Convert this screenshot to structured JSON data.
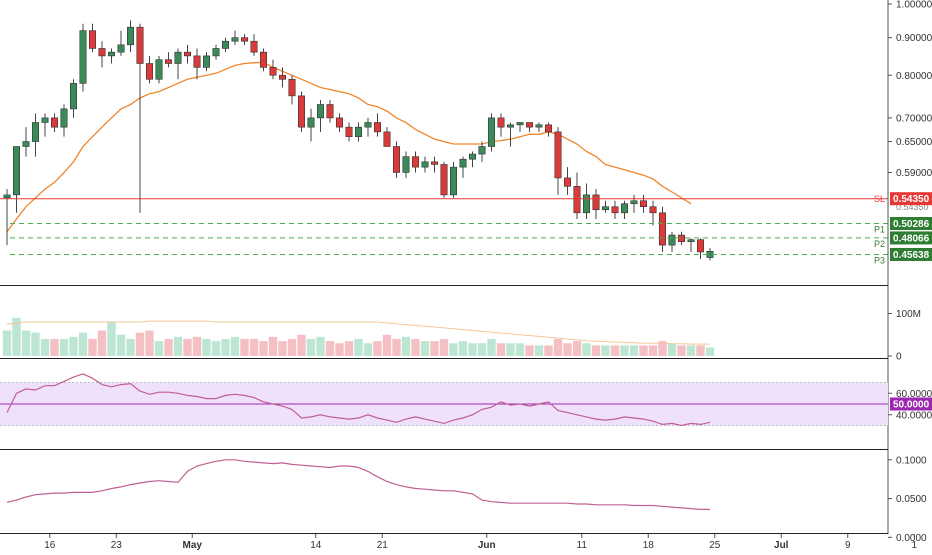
{
  "chart_data": {
    "type": "candlestick",
    "main": {
      "y_scale": "log",
      "ylim": [
        0.42,
        1.0
      ],
      "yticks": [
        "1.00000",
        "0.90000",
        "0.80000",
        "0.70000",
        "0.65000",
        "0.59000",
        "0.54350",
        "0.50286",
        "0.48066",
        "0.45638"
      ],
      "ytick_values": [
        1.0,
        0.9,
        0.8,
        0.7,
        0.65,
        0.59
      ],
      "candles": [
        [
          0.545,
          0.56,
          0.47,
          0.55
        ],
        [
          0.55,
          0.64,
          0.52,
          0.64
        ],
        [
          0.64,
          0.68,
          0.62,
          0.65
        ],
        [
          0.65,
          0.71,
          0.62,
          0.69
        ],
        [
          0.69,
          0.71,
          0.66,
          0.7
        ],
        [
          0.7,
          0.71,
          0.67,
          0.68
        ],
        [
          0.68,
          0.73,
          0.66,
          0.72
        ],
        [
          0.72,
          0.79,
          0.7,
          0.78
        ],
        [
          0.78,
          0.94,
          0.76,
          0.92
        ],
        [
          0.92,
          0.94,
          0.86,
          0.87
        ],
        [
          0.87,
          0.89,
          0.82,
          0.85
        ],
        [
          0.85,
          0.87,
          0.83,
          0.86
        ],
        [
          0.86,
          0.92,
          0.85,
          0.88
        ],
        [
          0.88,
          0.95,
          0.86,
          0.93
        ],
        [
          0.93,
          0.94,
          0.52,
          0.83
        ],
        [
          0.83,
          0.85,
          0.78,
          0.79
        ],
        [
          0.79,
          0.85,
          0.78,
          0.84
        ],
        [
          0.84,
          0.86,
          0.82,
          0.83
        ],
        [
          0.83,
          0.87,
          0.79,
          0.86
        ],
        [
          0.86,
          0.88,
          0.83,
          0.85
        ],
        [
          0.85,
          0.87,
          0.79,
          0.82
        ],
        [
          0.82,
          0.86,
          0.81,
          0.85
        ],
        [
          0.85,
          0.88,
          0.84,
          0.87
        ],
        [
          0.87,
          0.9,
          0.86,
          0.89
        ],
        [
          0.89,
          0.92,
          0.88,
          0.9
        ],
        [
          0.9,
          0.91,
          0.88,
          0.89
        ],
        [
          0.89,
          0.91,
          0.85,
          0.86
        ],
        [
          0.86,
          0.87,
          0.81,
          0.82
        ],
        [
          0.82,
          0.84,
          0.79,
          0.8
        ],
        [
          0.8,
          0.82,
          0.77,
          0.79
        ],
        [
          0.79,
          0.8,
          0.73,
          0.75
        ],
        [
          0.75,
          0.76,
          0.67,
          0.68
        ],
        [
          0.68,
          0.72,
          0.65,
          0.7
        ],
        [
          0.7,
          0.74,
          0.67,
          0.73
        ],
        [
          0.73,
          0.74,
          0.69,
          0.7
        ],
        [
          0.7,
          0.71,
          0.67,
          0.68
        ],
        [
          0.68,
          0.69,
          0.65,
          0.66
        ],
        [
          0.66,
          0.69,
          0.65,
          0.68
        ],
        [
          0.68,
          0.7,
          0.66,
          0.69
        ],
        [
          0.69,
          0.71,
          0.66,
          0.67
        ],
        [
          0.67,
          0.68,
          0.64,
          0.64
        ],
        [
          0.64,
          0.65,
          0.58,
          0.59
        ],
        [
          0.59,
          0.63,
          0.58,
          0.62
        ],
        [
          0.62,
          0.63,
          0.59,
          0.6
        ],
        [
          0.6,
          0.62,
          0.59,
          0.61
        ],
        [
          0.61,
          0.62,
          0.59,
          0.605
        ],
        [
          0.605,
          0.61,
          0.545,
          0.55
        ],
        [
          0.55,
          0.61,
          0.545,
          0.6
        ],
        [
          0.6,
          0.62,
          0.58,
          0.615
        ],
        [
          0.615,
          0.63,
          0.6,
          0.625
        ],
        [
          0.625,
          0.65,
          0.61,
          0.64
        ],
        [
          0.64,
          0.71,
          0.63,
          0.7
        ],
        [
          0.7,
          0.71,
          0.66,
          0.68
        ],
        [
          0.68,
          0.69,
          0.64,
          0.685
        ],
        [
          0.685,
          0.69,
          0.67,
          0.69
        ],
        [
          0.69,
          0.69,
          0.67,
          0.68
        ],
        [
          0.68,
          0.69,
          0.67,
          0.685
        ],
        [
          0.685,
          0.69,
          0.66,
          0.67
        ],
        [
          0.67,
          0.68,
          0.55,
          0.58
        ],
        [
          0.58,
          0.6,
          0.55,
          0.565
        ],
        [
          0.565,
          0.59,
          0.51,
          0.52
        ],
        [
          0.52,
          0.57,
          0.51,
          0.55
        ],
        [
          0.55,
          0.56,
          0.51,
          0.525
        ],
        [
          0.525,
          0.54,
          0.52,
          0.53
        ],
        [
          0.53,
          0.54,
          0.51,
          0.52
        ],
        [
          0.52,
          0.54,
          0.51,
          0.535
        ],
        [
          0.535,
          0.55,
          0.52,
          0.54
        ],
        [
          0.54,
          0.55,
          0.52,
          0.53
        ],
        [
          0.53,
          0.54,
          0.5,
          0.52
        ],
        [
          0.52,
          0.53,
          0.46,
          0.47
        ],
        [
          0.47,
          0.49,
          0.46,
          0.485
        ],
        [
          0.485,
          0.49,
          0.47,
          0.475
        ],
        [
          0.475,
          0.48,
          0.46,
          0.478
        ],
        [
          0.478,
          0.48,
          0.45,
          0.46
        ],
        [
          0.452,
          0.466,
          0.448,
          0.461
        ]
      ],
      "sma": [
        0.49,
        0.51,
        0.53,
        0.545,
        0.56,
        0.572,
        0.59,
        0.61,
        0.64,
        0.66,
        0.68,
        0.7,
        0.72,
        0.73,
        0.745,
        0.755,
        0.76,
        0.77,
        0.78,
        0.79,
        0.795,
        0.8,
        0.805,
        0.815,
        0.825,
        0.83,
        0.832,
        0.833,
        0.82,
        0.81,
        0.8,
        0.79,
        0.78,
        0.77,
        0.765,
        0.76,
        0.755,
        0.745,
        0.73,
        0.725,
        0.715,
        0.7,
        0.69,
        0.675,
        0.665,
        0.655,
        0.65,
        0.645,
        0.645,
        0.645,
        0.645,
        0.65,
        0.652,
        0.655,
        0.66,
        0.665,
        0.665,
        0.67,
        0.665,
        0.655,
        0.645,
        0.63,
        0.62,
        0.605,
        0.6,
        0.595,
        0.59,
        0.585,
        0.578,
        0.565,
        0.555,
        0.545,
        0.535
      ],
      "levels": [
        {
          "tag": "SL",
          "value": 0.5435,
          "label": "0.54350",
          "color": "#e53935",
          "style": "solid",
          "start": 0
        },
        {
          "tag": "P1",
          "value": 0.50286,
          "label": "0.50286",
          "color": "#4caf50",
          "style": "dashed",
          "start": 1
        },
        {
          "tag": "P2",
          "value": 0.48066,
          "label": "0.48066",
          "color": "#4caf50",
          "style": "dashed",
          "start": 1
        },
        {
          "tag": "P3",
          "value": 0.45638,
          "label": "0.45638",
          "color": "#4caf50",
          "style": "dashed",
          "start": 1
        }
      ]
    },
    "volume": {
      "ylim": [
        0,
        160
      ],
      "ytick_labels": [
        "100M",
        "0"
      ],
      "ytick_values": [
        100,
        0
      ],
      "values": [
        60,
        90,
        60,
        55,
        40,
        40,
        40,
        45,
        55,
        40,
        60,
        80,
        50,
        40,
        55,
        60,
        35,
        40,
        45,
        40,
        45,
        40,
        35,
        40,
        45,
        40,
        40,
        35,
        45,
        35,
        40,
        50,
        40,
        45,
        35,
        30,
        35,
        40,
        30,
        35,
        50,
        40,
        45,
        40,
        35,
        35,
        40,
        30,
        35,
        30,
        30,
        40,
        30,
        30,
        30,
        25,
        25,
        25,
        40,
        30,
        35,
        30,
        25,
        25,
        25,
        25,
        25,
        25,
        25,
        35,
        30,
        25,
        25,
        25,
        20
      ],
      "ma": [
        75,
        77,
        80,
        80,
        80,
        80,
        80,
        80,
        80,
        80,
        80,
        80,
        80,
        80,
        80,
        82,
        82,
        82,
        82,
        82,
        82,
        82,
        80,
        80,
        80,
        80,
        80,
        80,
        80,
        80,
        80,
        80,
        80,
        80,
        80,
        80,
        80,
        80,
        80,
        80,
        78,
        76,
        74,
        72,
        70,
        68,
        66,
        64,
        62,
        60,
        58,
        56,
        54,
        52,
        50,
        48,
        46,
        44,
        42,
        40,
        38,
        36,
        35,
        34,
        33,
        32,
        31,
        30,
        30,
        30,
        29,
        29,
        28,
        28,
        28
      ],
      "bull_color": "#bde5d3",
      "bear_color": "#f5c0c4"
    },
    "rsi": {
      "ylim": [
        10,
        90
      ],
      "band": [
        30,
        70
      ],
      "midline": "50.0000",
      "ytick_labels": [
        "60.0000",
        "40.0000"
      ],
      "ytick_values": [
        60,
        40
      ],
      "values": [
        42,
        60,
        64,
        63,
        67,
        67,
        71,
        75,
        78,
        74,
        68,
        66,
        68,
        69,
        62,
        59,
        61,
        61,
        60,
        58,
        57,
        55,
        55,
        58,
        59,
        58,
        56,
        52,
        50,
        48,
        45,
        37,
        38,
        40,
        38,
        37,
        36,
        37,
        40,
        37,
        35,
        33,
        36,
        38,
        36,
        34,
        32,
        35,
        37,
        40,
        45,
        47,
        52,
        49,
        50,
        48,
        50,
        52,
        44,
        42,
        40,
        38,
        36,
        35,
        36,
        38,
        37,
        36,
        34,
        31,
        32,
        30,
        32,
        31,
        33
      ],
      "color": "#c06090",
      "mid_color": "#9c27b0"
    },
    "osc": {
      "ylim": [
        -0.015,
        0.11
      ],
      "ytick_labels": [
        "0.1000",
        "0.0500",
        "0.0000"
      ],
      "ytick_values": [
        0.1,
        0.05,
        0.0
      ],
      "values": [
        0.045,
        0.048,
        0.052,
        0.055,
        0.056,
        0.057,
        0.057,
        0.058,
        0.058,
        0.058,
        0.06,
        0.063,
        0.065,
        0.068,
        0.07,
        0.072,
        0.073,
        0.072,
        0.071,
        0.085,
        0.092,
        0.095,
        0.098,
        0.1,
        0.1,
        0.098,
        0.097,
        0.096,
        0.095,
        0.096,
        0.094,
        0.093,
        0.092,
        0.091,
        0.09,
        0.092,
        0.092,
        0.09,
        0.085,
        0.078,
        0.072,
        0.068,
        0.065,
        0.063,
        0.062,
        0.061,
        0.06,
        0.06,
        0.058,
        0.056,
        0.048,
        0.046,
        0.045,
        0.044,
        0.044,
        0.044,
        0.044,
        0.044,
        0.044,
        0.044,
        0.043,
        0.043,
        0.042,
        0.042,
        0.042,
        0.042,
        0.041,
        0.041,
        0.041,
        0.04,
        0.039,
        0.038,
        0.037,
        0.036,
        0.036
      ],
      "color": "#c06090"
    },
    "x_axis": {
      "labels": [
        {
          "text": "16",
          "pos": 4.5,
          "bold": false
        },
        {
          "text": "23",
          "pos": 11.5,
          "bold": false
        },
        {
          "text": "May",
          "pos": 19.5,
          "bold": true
        },
        {
          "text": "14",
          "pos": 32.5,
          "bold": false
        },
        {
          "text": "21",
          "pos": 39.5,
          "bold": false
        },
        {
          "text": "Jun",
          "pos": 50.5,
          "bold": true
        },
        {
          "text": "11",
          "pos": 60.5,
          "bold": false
        },
        {
          "text": "18",
          "pos": 67.5,
          "bold": false
        },
        {
          "text": "25",
          "pos": 74.5,
          "bold": false
        },
        {
          "text": "Jul",
          "pos": 81.5,
          "bold": true
        },
        {
          "text": "9",
          "pos": 88.5,
          "bold": false
        },
        {
          "text": "1",
          "pos": 95.5,
          "bold": false
        }
      ]
    },
    "colors": {
      "bull": "#3b8a5a",
      "bear": "#d93a3a",
      "sma": "#f0862b",
      "rsi_band": "#efe0fb",
      "axis_label_dark": "#2e7d32"
    }
  }
}
